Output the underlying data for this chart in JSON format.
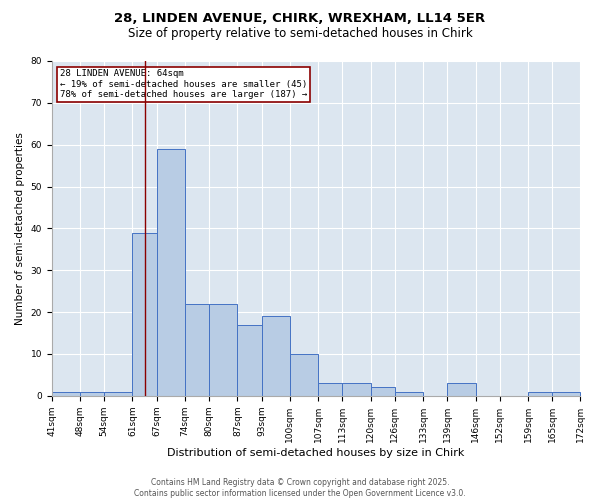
{
  "title1": "28, LINDEN AVENUE, CHIRK, WREXHAM, LL14 5ER",
  "title2": "Size of property relative to semi-detached houses in Chirk",
  "xlabel": "Distribution of semi-detached houses by size in Chirk",
  "ylabel": "Number of semi-detached properties",
  "bin_edges": [
    41,
    48,
    54,
    61,
    67,
    74,
    80,
    87,
    93,
    100,
    107,
    113,
    120,
    126,
    133,
    139,
    146,
    152,
    159,
    165,
    172
  ],
  "bin_labels": [
    "41sqm",
    "48sqm",
    "54sqm",
    "61sqm",
    "67sqm",
    "74sqm",
    "80sqm",
    "87sqm",
    "93sqm",
    "100sqm",
    "107sqm",
    "113sqm",
    "120sqm",
    "126sqm",
    "133sqm",
    "139sqm",
    "146sqm",
    "152sqm",
    "159sqm",
    "165sqm",
    "172sqm"
  ],
  "counts": [
    1,
    1,
    1,
    39,
    59,
    22,
    22,
    17,
    19,
    10,
    3,
    3,
    2,
    1,
    0,
    3,
    0,
    0,
    1,
    1
  ],
  "bar_color": "#b8cce4",
  "bar_edge_color": "#4472c4",
  "property_size": 64,
  "red_line_color": "#8b0000",
  "annotation_text": "28 LINDEN AVENUE: 64sqm\n← 19% of semi-detached houses are smaller (45)\n78% of semi-detached houses are larger (187) →",
  "annotation_box_color": "#8b0000",
  "ylim": [
    0,
    80
  ],
  "yticks": [
    0,
    10,
    20,
    30,
    40,
    50,
    60,
    70,
    80
  ],
  "footer1": "Contains HM Land Registry data © Crown copyright and database right 2025.",
  "footer2": "Contains public sector information licensed under the Open Government Licence v3.0.",
  "bg_color": "#dce6f0",
  "title1_fontsize": 9.5,
  "title2_fontsize": 8.5,
  "xlabel_fontsize": 8,
  "ylabel_fontsize": 7.5,
  "tick_fontsize": 6.5,
  "annot_fontsize": 6.5,
  "footer_fontsize": 5.5
}
